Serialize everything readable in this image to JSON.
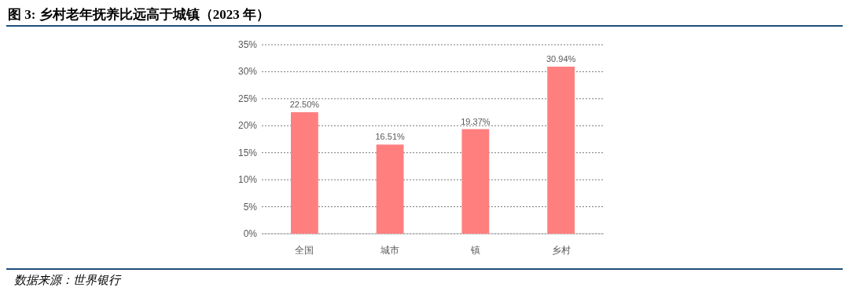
{
  "chart_data": {
    "type": "bar",
    "title": "图 3: 乡村老年抚养比远高于城镇（2023 年）",
    "categories": [
      "全国",
      "城市",
      "镇",
      "乡村"
    ],
    "values": [
      22.5,
      16.51,
      19.37,
      30.94
    ],
    "value_labels": [
      "22.50%",
      "16.51%",
      "19.37%",
      "30.94%"
    ],
    "color": "#ff7f7f",
    "ylim": [
      0,
      35
    ],
    "yticks": [
      {
        "value": 0,
        "label": "0%"
      },
      {
        "value": 5,
        "label": "5%"
      },
      {
        "value": 10,
        "label": "10%"
      },
      {
        "value": 15,
        "label": "15%"
      },
      {
        "value": 20,
        "label": "20%"
      },
      {
        "value": 25,
        "label": "25%"
      },
      {
        "value": 30,
        "label": "30%"
      },
      {
        "value": 35,
        "label": "35%"
      }
    ],
    "grid": "y",
    "annotations": [
      "数据来源：世界银行"
    ]
  }
}
